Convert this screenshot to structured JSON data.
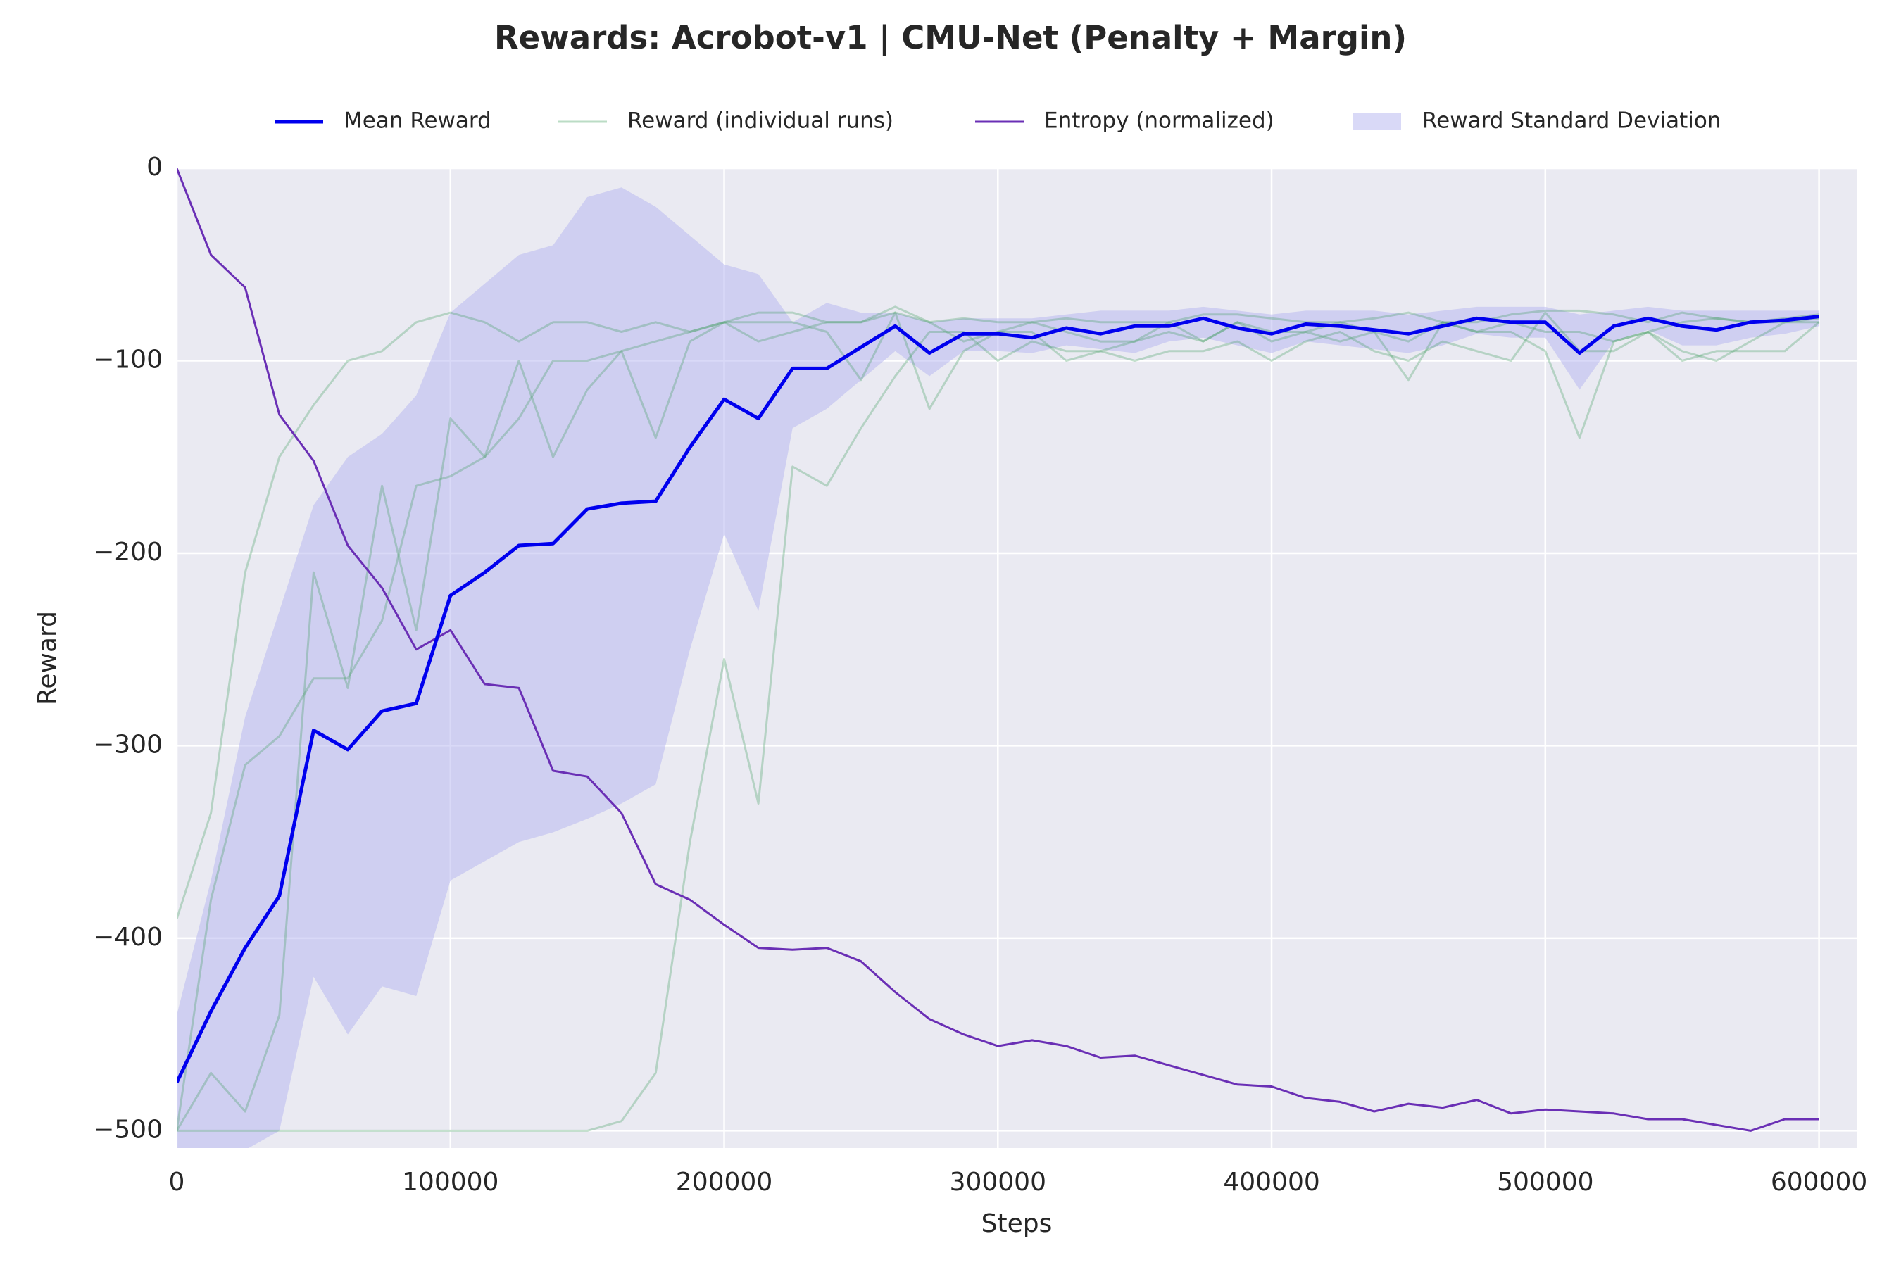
{
  "chart_data": {
    "type": "line",
    "title": "Rewards: Acrobot-v1 | CMU-Net (Penalty + Margin)",
    "x_label": "Steps",
    "y_label": "Reward",
    "x": [
      0,
      12500,
      25000,
      37500,
      50000,
      62500,
      75000,
      87500,
      100000,
      112500,
      125000,
      137500,
      150000,
      162500,
      175000,
      187500,
      200000,
      212500,
      225000,
      237500,
      250000,
      262500,
      275000,
      287500,
      300000,
      312500,
      325000,
      337500,
      350000,
      362500,
      375000,
      387500,
      400000,
      412500,
      425000,
      437500,
      450000,
      462500,
      475000,
      487500,
      500000,
      512500,
      525000,
      537500,
      550000,
      562500,
      575000,
      587500,
      600000
    ],
    "mean": {
      "name": "Mean Reward",
      "color": "#0000ee",
      "values": [
        -475,
        -438,
        -405,
        -378,
        -292,
        -302,
        -282,
        -278,
        -222,
        -210,
        -196,
        -195,
        -177,
        -174,
        -173,
        -145,
        -120,
        -130,
        -104,
        -104,
        -93,
        -82,
        -96,
        -86,
        -86,
        -88,
        -83,
        -86,
        -82,
        -82,
        -78,
        -83,
        -86,
        -81,
        -82,
        -84,
        -86,
        -82,
        -78,
        -80,
        -80,
        -96,
        -82,
        -78,
        -82,
        -84,
        -80,
        -79,
        -77
      ]
    },
    "runs": {
      "name": "Reward (individual runs)",
      "color": "#3c9a5a",
      "values": [
        [
          -390,
          -335,
          -210,
          -150,
          -123,
          -100,
          -95,
          -80,
          -75,
          -80,
          -90,
          -80,
          -80,
          -85,
          -80,
          -85,
          -80,
          -75,
          -75,
          -80,
          -80,
          -72,
          -80,
          -78,
          -80,
          -80,
          -78,
          -80,
          -80,
          -80,
          -76,
          -76,
          -78,
          -80,
          -80,
          -78,
          -75,
          -80,
          -80,
          -76,
          -74,
          -74,
          -76,
          -80,
          -75,
          -78,
          -80,
          -78,
          -76
        ],
        [
          -500,
          -380,
          -310,
          -295,
          -265,
          -265,
          -235,
          -165,
          -160,
          -150,
          -130,
          -100,
          -100,
          -95,
          -90,
          -85,
          -80,
          -90,
          -85,
          -80,
          -80,
          -75,
          -80,
          -90,
          -85,
          -80,
          -85,
          -90,
          -90,
          -80,
          -90,
          -80,
          -85,
          -85,
          -80,
          -85,
          -90,
          -80,
          -85,
          -80,
          -85,
          -85,
          -90,
          -85,
          -80,
          -78,
          -80,
          -80,
          -78
        ],
        [
          -500,
          -470,
          -490,
          -440,
          -210,
          -270,
          -165,
          -240,
          -130,
          -150,
          -100,
          -150,
          -115,
          -95,
          -140,
          -90,
          -80,
          -80,
          -80,
          -85,
          -110,
          -75,
          -125,
          -95,
          -85,
          -85,
          -100,
          -95,
          -90,
          -85,
          -90,
          -80,
          -90,
          -85,
          -90,
          -85,
          -110,
          -80,
          -85,
          -85,
          -95,
          -140,
          -90,
          -85,
          -95,
          -100,
          -90,
          -80,
          -80
        ],
        [
          -500,
          -500,
          -500,
          -500,
          -500,
          -500,
          -500,
          -500,
          -500,
          -500,
          -500,
          -500,
          -500,
          -495,
          -470,
          -350,
          -255,
          -330,
          -155,
          -165,
          -135,
          -108,
          -85,
          -85,
          -100,
          -90,
          -95,
          -95,
          -100,
          -95,
          -95,
          -90,
          -100,
          -90,
          -85,
          -95,
          -100,
          -90,
          -95,
          -100,
          -75,
          -95,
          -95,
          -85,
          -100,
          -95,
          -95,
          -95,
          -80
        ]
      ]
    },
    "entropy": {
      "name": "Entropy (normalized)",
      "color": "#6a2fb5",
      "values": [
        0,
        -45,
        -62,
        -128,
        -152,
        -196,
        -218,
        -250,
        -240,
        -268,
        -270,
        -313,
        -316,
        -335,
        -372,
        -380,
        -393,
        -405,
        -406,
        -405,
        -412,
        -428,
        -442,
        -450,
        -456,
        -453,
        -456,
        -462,
        -461,
        -466,
        -471,
        -476,
        -477,
        -483,
        -485,
        -490,
        -486,
        -488,
        -484,
        -491,
        -489,
        -490,
        -491,
        -494,
        -494,
        -497,
        -500,
        -494,
        -494
      ]
    },
    "std_band": {
      "name": "Reward Standard Deviation",
      "color": "#b4b4f0",
      "upper": [
        -440,
        -370,
        -285,
        -230,
        -175,
        -150,
        -138,
        -118,
        -75,
        -60,
        -45,
        -40,
        -15,
        -10,
        -20,
        -35,
        -50,
        -55,
        -80,
        -70,
        -75,
        -75,
        -80,
        -78,
        -78,
        -78,
        -76,
        -74,
        -74,
        -74,
        -72,
        -74,
        -76,
        -74,
        -74,
        -74,
        -76,
        -74,
        -72,
        -72,
        -72,
        -76,
        -74,
        -72,
        -74,
        -74,
        -74,
        -74,
        -74
      ],
      "lower": [
        -510,
        -510,
        -510,
        -500,
        -420,
        -450,
        -425,
        -430,
        -370,
        -360,
        -350,
        -345,
        -338,
        -330,
        -320,
        -250,
        -190,
        -230,
        -135,
        -125,
        -110,
        -95,
        -108,
        -95,
        -95,
        -96,
        -92,
        -94,
        -96,
        -90,
        -88,
        -92,
        -96,
        -90,
        -92,
        -94,
        -96,
        -92,
        -86,
        -88,
        -88,
        -115,
        -90,
        -84,
        -92,
        -92,
        -88,
        -86,
        -82
      ]
    },
    "xlim": [
      0,
      614000
    ],
    "ylim": [
      -509,
      0
    ],
    "xticks": [
      0,
      100000,
      200000,
      300000,
      400000,
      500000,
      600000
    ],
    "yticks": [
      {
        "value": -500,
        "label": "−500"
      },
      {
        "value": -400,
        "label": "−400"
      },
      {
        "value": -300,
        "label": "−300"
      },
      {
        "value": -200,
        "label": "−200"
      },
      {
        "value": -100,
        "label": "−100"
      },
      0
    ],
    "grid": true,
    "legend": "top"
  }
}
